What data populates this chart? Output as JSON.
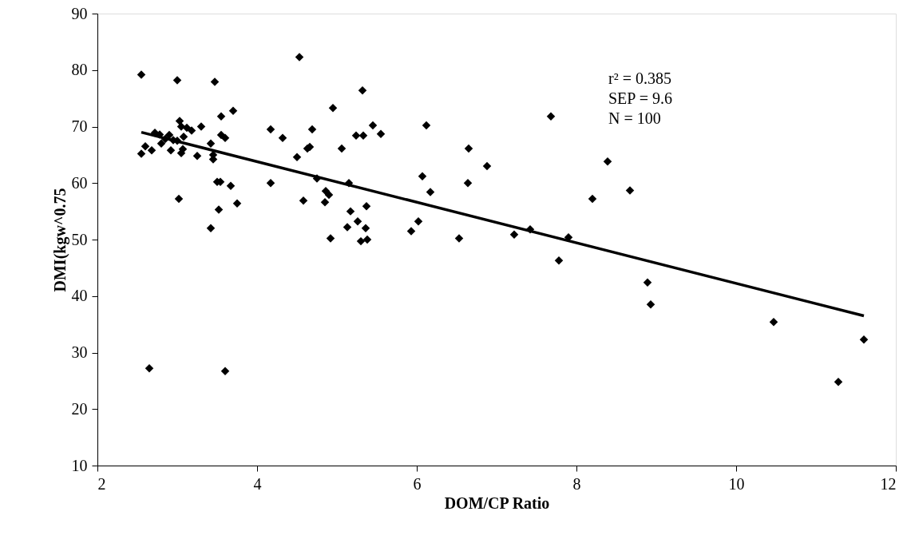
{
  "chart_data": {
    "type": "scatter",
    "xlabel": "DOM/CP Ratio",
    "ylabel": "DMI(kgw^0.75",
    "xlim": [
      2,
      12
    ],
    "xticks": [
      2,
      4,
      6,
      8,
      10,
      12
    ],
    "ylim": [
      10,
      90
    ],
    "yticks": [
      10,
      20,
      30,
      40,
      50,
      60,
      70,
      80,
      90
    ],
    "grid": false,
    "annotations": [
      "r² = 0.385",
      "SEP = 9.6",
      "N = 100"
    ],
    "series": [
      {
        "color": "#000000",
        "marker": "diamond",
        "x": [
          2.55,
          2.55,
          2.6,
          2.65,
          2.68,
          2.72,
          2.78,
          2.8,
          2.85,
          2.9,
          2.92,
          2.95,
          3.0,
          3.0,
          3.02,
          3.03,
          3.05,
          3.05,
          3.07,
          3.08,
          3.12,
          3.18,
          3.25,
          3.3,
          3.42,
          3.42,
          3.45,
          3.45,
          3.47,
          3.5,
          3.52,
          3.54,
          3.55,
          3.55,
          3.6,
          3.6,
          3.67,
          3.7,
          3.75,
          4.17,
          4.17,
          4.32,
          4.5,
          4.53,
          4.58,
          4.63,
          4.66,
          4.69,
          4.75,
          4.85,
          4.86,
          4.9,
          4.92,
          4.95,
          5.06,
          5.13,
          5.15,
          5.17,
          5.24,
          5.26,
          5.3,
          5.32,
          5.33,
          5.36,
          5.37,
          5.38,
          5.45,
          5.55,
          5.93,
          6.02,
          6.07,
          6.12,
          6.17,
          6.53,
          6.64,
          6.65,
          6.88,
          7.22,
          7.42,
          7.68,
          7.78,
          7.9,
          8.2,
          8.39,
          8.67,
          8.89,
          8.93,
          10.47,
          11.28,
          11.6
        ],
        "values": [
          79.2,
          65.2,
          66.5,
          27.2,
          65.8,
          68.9,
          68.6,
          67.0,
          67.8,
          68.5,
          65.8,
          67.6,
          78.2,
          67.5,
          57.2,
          71.0,
          65.3,
          70.0,
          66.0,
          68.2,
          69.8,
          69.3,
          64.8,
          70.0,
          67.0,
          52.0,
          64.2,
          65.0,
          77.9,
          60.2,
          55.3,
          60.2,
          71.8,
          68.5,
          68.0,
          26.7,
          59.5,
          72.8,
          56.4,
          69.5,
          60.0,
          68.0,
          64.6,
          82.3,
          56.9,
          66.1,
          66.4,
          69.5,
          60.8,
          56.6,
          58.6,
          57.9,
          50.2,
          73.3,
          66.1,
          52.2,
          60.0,
          55.0,
          68.4,
          53.2,
          49.7,
          76.4,
          68.4,
          52.0,
          55.9,
          50.0,
          70.2,
          68.7,
          51.5,
          53.2,
          61.2,
          70.2,
          58.4,
          50.2,
          60.0,
          66.1,
          63.0,
          50.9,
          51.8,
          71.8,
          46.3,
          50.4,
          57.2,
          63.8,
          58.7,
          42.4,
          38.5,
          35.4,
          24.8,
          32.3
        ]
      },
      {
        "type": "line",
        "color": "#000000",
        "line_style": "solid",
        "x": [
          2.55,
          11.6
        ],
        "values": [
          69.0,
          36.5
        ]
      }
    ]
  }
}
